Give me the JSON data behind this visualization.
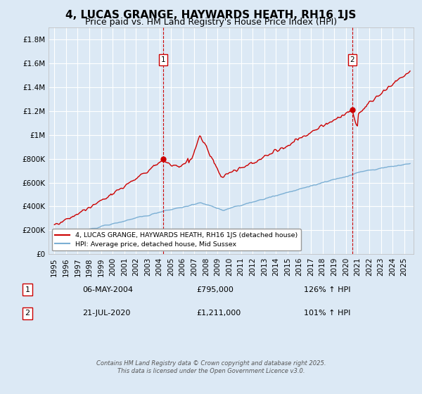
{
  "title": "4, LUCAS GRANGE, HAYWARDS HEATH, RH16 1JS",
  "subtitle": "Price paid vs. HM Land Registry's House Price Index (HPI)",
  "background_color": "#dce9f5",
  "plot_bg_color": "#dce9f5",
  "grid_color": "#ffffff",
  "red_line_color": "#cc0000",
  "blue_line_color": "#7bafd4",
  "marker1_x": 2004.34,
  "marker1_y": 795000,
  "marker1_label": "06-MAY-2004",
  "marker1_price": "£795,000",
  "marker1_hpi": "126% ↑ HPI",
  "marker2_x": 2020.55,
  "marker2_y": 1211000,
  "marker2_label": "21-JUL-2020",
  "marker2_price": "£1,211,000",
  "marker2_hpi": "101% ↑ HPI",
  "vline1_x": 2004.34,
  "vline2_x": 2020.55,
  "ylim": [
    0,
    1900000
  ],
  "yticks": [
    0,
    200000,
    400000,
    600000,
    800000,
    1000000,
    1200000,
    1400000,
    1600000,
    1800000
  ],
  "ytick_labels": [
    "£0",
    "£200K",
    "£400K",
    "£600K",
    "£800K",
    "£1M",
    "£1.2M",
    "£1.4M",
    "£1.6M",
    "£1.8M"
  ],
  "xlim": [
    1994.5,
    2025.8
  ],
  "xticks": [
    1995,
    1996,
    1997,
    1998,
    1999,
    2000,
    2001,
    2002,
    2003,
    2004,
    2005,
    2006,
    2007,
    2008,
    2009,
    2010,
    2011,
    2012,
    2013,
    2014,
    2015,
    2016,
    2017,
    2018,
    2019,
    2020,
    2021,
    2022,
    2023,
    2024,
    2025
  ],
  "legend_label_red": "4, LUCAS GRANGE, HAYWARDS HEATH, RH16 1JS (detached house)",
  "legend_label_blue": "HPI: Average price, detached house, Mid Sussex",
  "footer": "Contains HM Land Registry data © Crown copyright and database right 2025.\nThis data is licensed under the Open Government Licence v3.0.",
  "title_fontsize": 11,
  "subtitle_fontsize": 9,
  "tick_fontsize": 7.5
}
